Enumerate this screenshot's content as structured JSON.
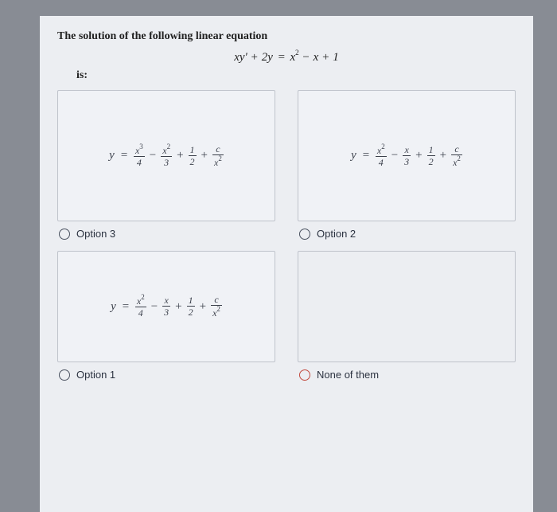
{
  "question": {
    "title": "The solution of the following linear equation",
    "equation_plain": "xy' + 2y = x² − x + 1",
    "is_label": "is:"
  },
  "options": {
    "top_left": {
      "label": "Option 3",
      "expr_y": "y",
      "terms": [
        {
          "num": "x³",
          "den": "4",
          "sign": ""
        },
        {
          "num": "x²",
          "den": "3",
          "sign": "−"
        },
        {
          "num": "1",
          "den": "2",
          "sign": "+"
        },
        {
          "num": "c",
          "den": "x²",
          "sign": "+"
        }
      ]
    },
    "top_right": {
      "label": "Option 2",
      "expr_y": "y",
      "terms": [
        {
          "num": "x²",
          "den": "4",
          "sign": ""
        },
        {
          "num": "x",
          "den": "3",
          "sign": "−"
        },
        {
          "num": "1",
          "den": "2",
          "sign": "+"
        },
        {
          "num": "c",
          "den": "x²",
          "sign": "+"
        }
      ]
    },
    "bottom_left": {
      "label": "Option 1",
      "expr_y": "y",
      "terms": [
        {
          "num": "x²",
          "den": "4",
          "sign": ""
        },
        {
          "num": "x",
          "den": "3",
          "sign": "−"
        },
        {
          "num": "1",
          "den": "2",
          "sign": "+"
        },
        {
          "num": "c",
          "den": "x²",
          "sign": "+"
        }
      ]
    },
    "bottom_right": {
      "label": "None of them"
    }
  },
  "colors": {
    "page_bg": "#888c94",
    "sheet_bg": "#eceef2",
    "box_border": "#bfc3cb",
    "text": "#3a3f4a",
    "radio": "#4a5260",
    "radio_red": "#c24a3f"
  }
}
